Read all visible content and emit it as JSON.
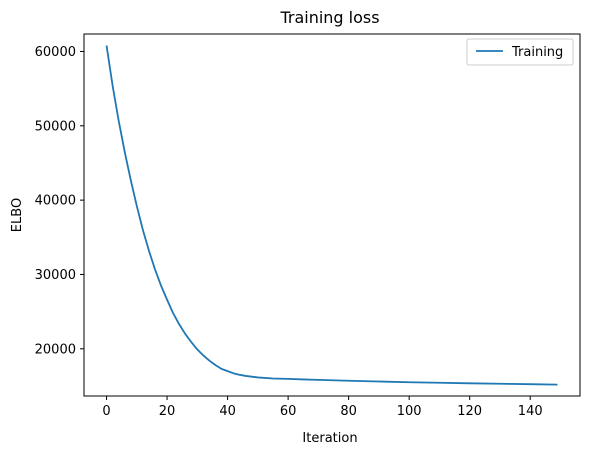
{
  "chart_data": {
    "type": "line",
    "title": "Training loss",
    "xlabel": "Iteration",
    "ylabel": "ELBO",
    "xlim": [
      -7.45,
      156.45
    ],
    "ylim": [
      13650,
      62350
    ],
    "xticks": [
      0,
      20,
      40,
      60,
      80,
      100,
      120,
      140
    ],
    "yticks": [
      20000,
      30000,
      40000,
      50000,
      60000
    ],
    "grid": false,
    "legend_position": "top-right",
    "series": [
      {
        "name": "Training",
        "color": "#1f77b4",
        "x": [
          0,
          2,
          4,
          6,
          8,
          10,
          12,
          14,
          16,
          18,
          20,
          22,
          24,
          26,
          28,
          30,
          32,
          34,
          36,
          38,
          40,
          42,
          44,
          46,
          48,
          50,
          55,
          60,
          65,
          70,
          80,
          90,
          100,
          110,
          120,
          130,
          140,
          149
        ],
        "y": [
          60800,
          55400,
          50700,
          46500,
          42700,
          39200,
          36000,
          33200,
          30700,
          28500,
          26600,
          24800,
          23300,
          22000,
          20900,
          19900,
          19100,
          18400,
          17800,
          17300,
          17000,
          16700,
          16500,
          16350,
          16250,
          16150,
          16000,
          15950,
          15880,
          15820,
          15700,
          15600,
          15500,
          15430,
          15360,
          15300,
          15240,
          15180
        ]
      }
    ]
  }
}
